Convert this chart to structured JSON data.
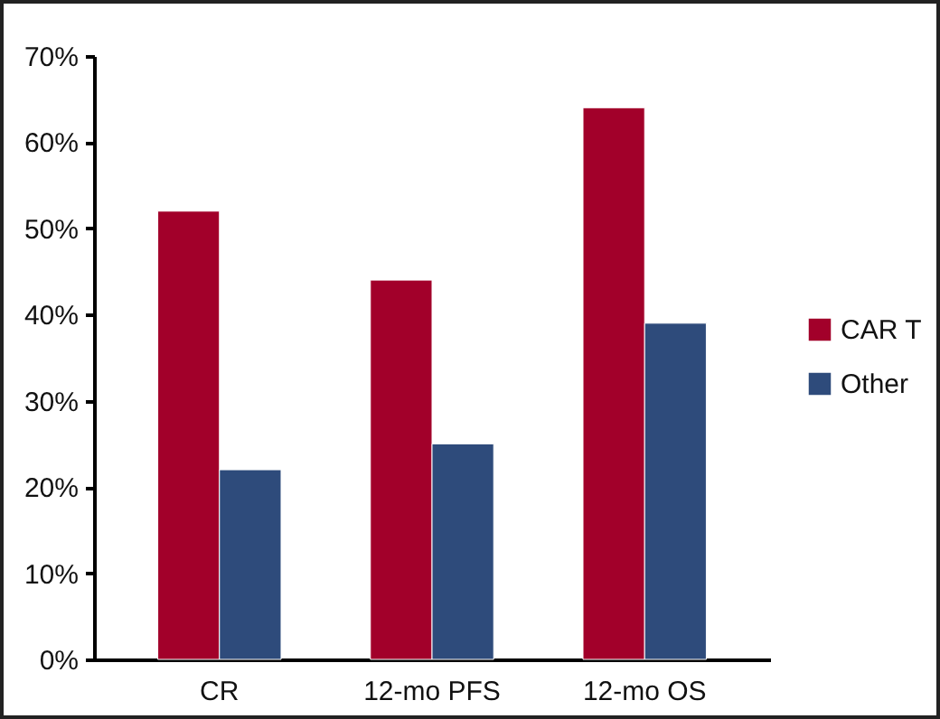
{
  "chart_data": {
    "type": "bar",
    "categories": [
      "CR",
      "12-mo PFS",
      "12-mo OS"
    ],
    "series": [
      {
        "name": "CAR T",
        "color": "#a2002a",
        "values": [
          52,
          44,
          64
        ]
      },
      {
        "name": "Other",
        "color": "#2e4b7b",
        "values": [
          22,
          25,
          39
        ]
      }
    ],
    "ylim": [
      0,
      70
    ],
    "yticks": [
      {
        "value": 0,
        "label": "0%"
      },
      {
        "value": 10,
        "label": "10%"
      },
      {
        "value": 20,
        "label": "20%"
      },
      {
        "value": 30,
        "label": "30%"
      },
      {
        "value": 40,
        "label": "40%"
      },
      {
        "value": 50,
        "label": "50%"
      },
      {
        "value": 60,
        "label": "60%"
      },
      {
        "value": 70,
        "label": "70%"
      }
    ],
    "grid": false,
    "legend": "right"
  }
}
